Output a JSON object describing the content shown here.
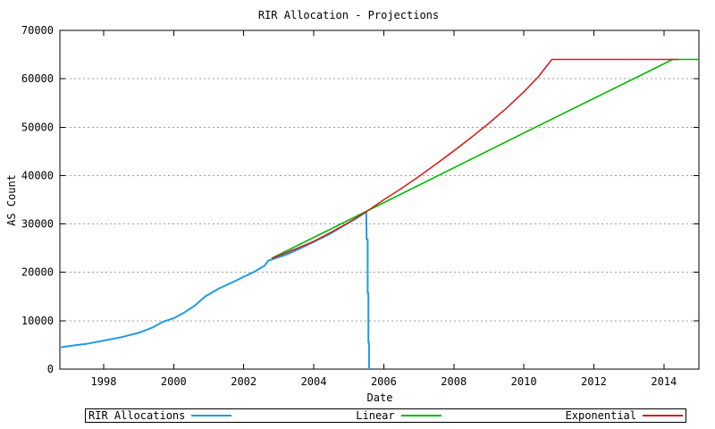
{
  "chart_data": {
    "type": "line",
    "title": "RIR Allocation - Projections",
    "xlabel": "Date",
    "ylabel": "AS Count",
    "xlim": [
      1996.75,
      2015.0
    ],
    "ylim": [
      0,
      70000
    ],
    "xticks": [
      1998,
      2000,
      2002,
      2004,
      2006,
      2008,
      2010,
      2012,
      2014
    ],
    "yticks": [
      0,
      10000,
      20000,
      30000,
      40000,
      50000,
      60000,
      70000
    ],
    "grid": "horizontal-dotted",
    "legend_position": "bottom",
    "axis_color": "#000000",
    "grid_color": "#9c9c9c",
    "background_color": "#ffffff",
    "series": [
      {
        "name": "RIR Allocations",
        "color": "#1e9ce2",
        "points": [
          [
            1996.78,
            4500
          ],
          [
            1997.0,
            4750
          ],
          [
            1997.5,
            5200
          ],
          [
            1998.0,
            5900
          ],
          [
            1998.5,
            6600
          ],
          [
            1999.0,
            7500
          ],
          [
            1999.4,
            8600
          ],
          [
            1999.7,
            9800
          ],
          [
            2000.0,
            10500
          ],
          [
            2000.3,
            11700
          ],
          [
            2000.6,
            13100
          ],
          [
            2000.9,
            15000
          ],
          [
            2001.3,
            16700
          ],
          [
            2001.7,
            18000
          ],
          [
            2002.0,
            19100
          ],
          [
            2002.3,
            20100
          ],
          [
            2002.6,
            21400
          ],
          [
            2002.7,
            22400
          ],
          [
            2002.9,
            22900
          ],
          [
            2003.2,
            23600
          ],
          [
            2003.6,
            24900
          ],
          [
            2004.0,
            26300
          ],
          [
            2004.4,
            27700
          ],
          [
            2004.8,
            29400
          ],
          [
            2005.2,
            31100
          ],
          [
            2005.5,
            32500
          ],
          [
            2005.51,
            26800
          ],
          [
            2005.54,
            26800
          ],
          [
            2005.54,
            15700
          ],
          [
            2005.56,
            15700
          ],
          [
            2005.56,
            5500
          ],
          [
            2005.58,
            5500
          ],
          [
            2005.58,
            0
          ]
        ]
      },
      {
        "name": "Linear",
        "color": "#00b800",
        "points": [
          [
            2002.8,
            22900
          ],
          [
            2005.5,
            32600
          ],
          [
            2010.0,
            48800
          ],
          [
            2013.5,
            61300
          ],
          [
            2014.25,
            64000
          ],
          [
            2015.0,
            64000
          ]
        ]
      },
      {
        "name": "Exponential",
        "color": "#d21e1e",
        "points": [
          [
            2002.8,
            22900
          ],
          [
            2003.0,
            23400
          ],
          [
            2003.5,
            24900
          ],
          [
            2004.0,
            26400
          ],
          [
            2004.5,
            28300
          ],
          [
            2005.0,
            30300
          ],
          [
            2005.5,
            32500
          ],
          [
            2006.0,
            35000
          ],
          [
            2006.5,
            37300
          ],
          [
            2007.0,
            39800
          ],
          [
            2007.5,
            42400
          ],
          [
            2008.0,
            45100
          ],
          [
            2008.5,
            47900
          ],
          [
            2009.0,
            50800
          ],
          [
            2009.5,
            53900
          ],
          [
            2010.0,
            57300
          ],
          [
            2010.4,
            60300
          ],
          [
            2010.8,
            64000
          ],
          [
            2014.4,
            64000
          ]
        ]
      }
    ]
  }
}
